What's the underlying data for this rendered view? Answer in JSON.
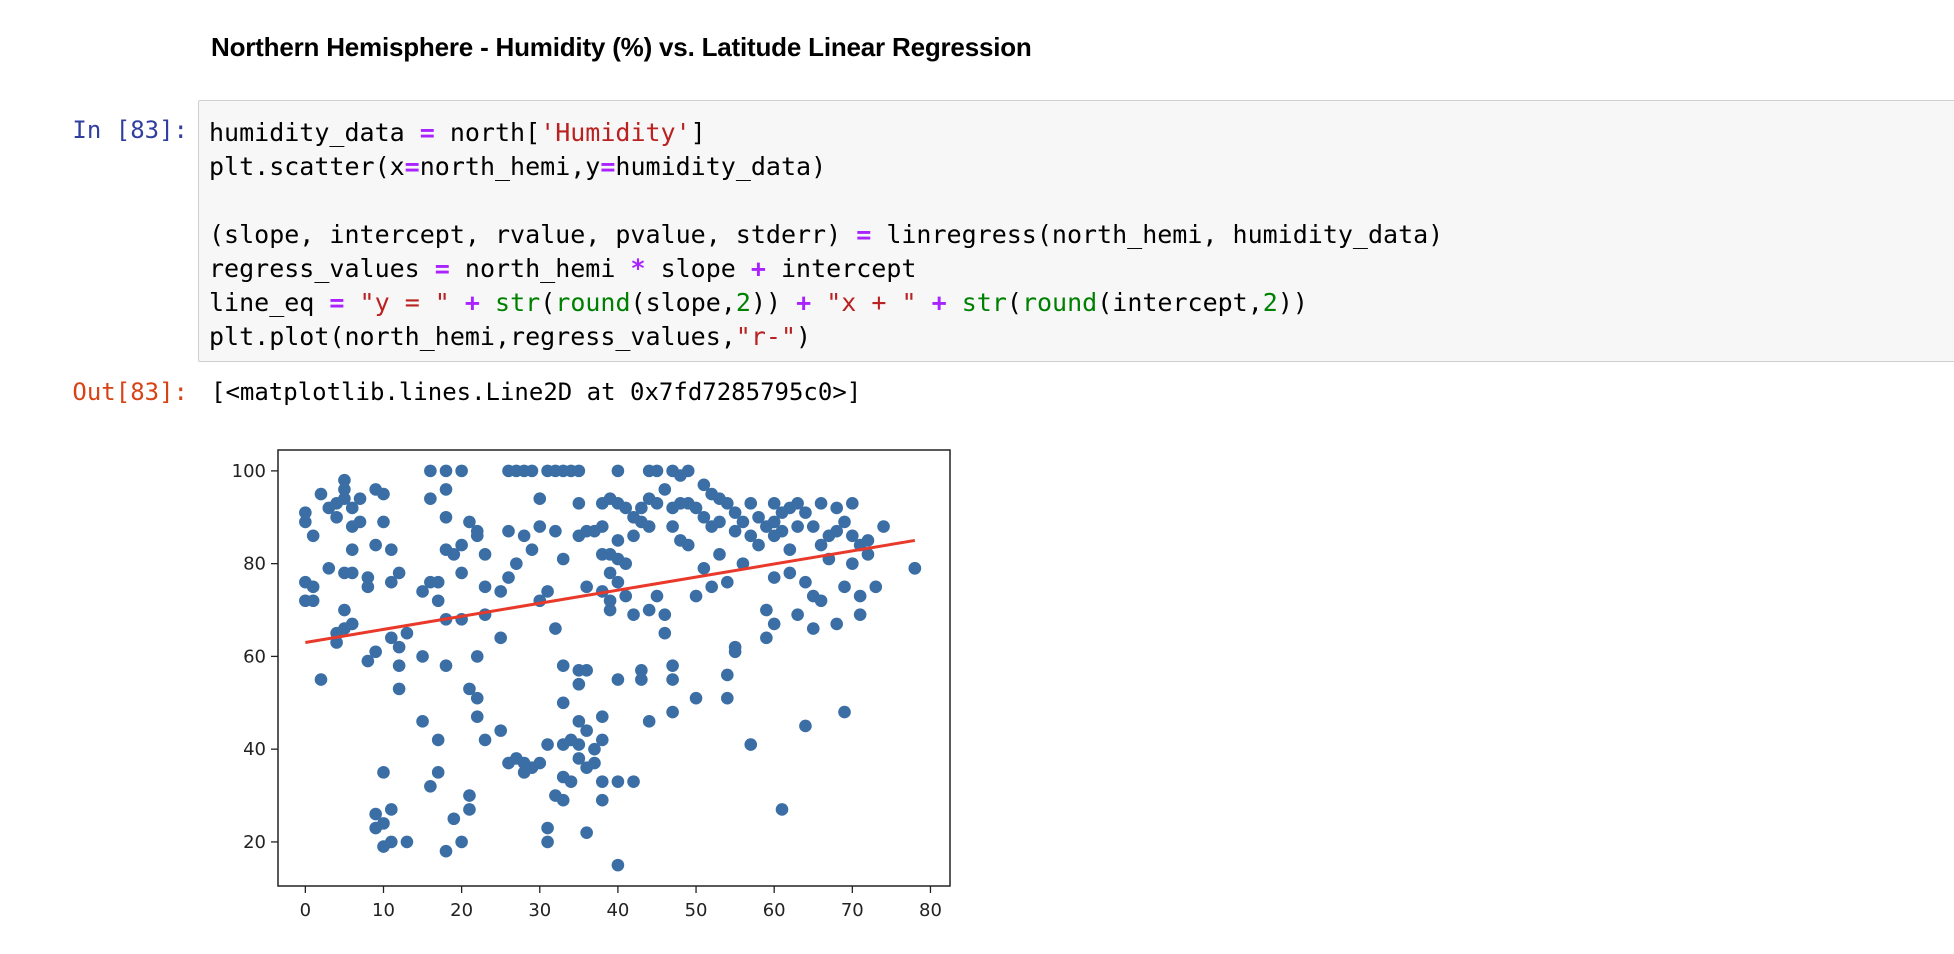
{
  "notebook": {
    "heading": "Northern Hemisphere - Humidity (%) vs. Latitude Linear Regression",
    "in_prompt": "In [83]:",
    "out_prompt": "Out[83]:",
    "output_text": "[<matplotlib.lines.Line2D at 0x7fd7285795c0>]",
    "code_lines": [
      "humidity_data = north['Humidity']",
      "plt.scatter(x=north_hemi,y=humidity_data)",
      "",
      "(slope, intercept, rvalue, pvalue, stderr) = linregress(north_hemi, humidity_data)",
      "regress_values = north_hemi * slope + intercept",
      "line_eq = \"y = \" + str(round(slope,2)) + \"x + \" + str(round(intercept,2))",
      "plt.plot(north_hemi,regress_values,\"r-\")"
    ]
  },
  "colors": {
    "points": "#3a6ea5",
    "line": "#e8392a"
  },
  "chart_data": {
    "type": "scatter",
    "title": "",
    "xlabel": "",
    "ylabel": "",
    "xlim": [
      -3.5,
      82.5
    ],
    "ylim": [
      10.5,
      104.5
    ],
    "xticks": [
      0,
      10,
      20,
      30,
      40,
      50,
      60,
      70,
      80
    ],
    "yticks": [
      20,
      40,
      60,
      80,
      100
    ],
    "grid": false,
    "regression_line": {
      "x": [
        0,
        78
      ],
      "y": [
        63,
        85
      ]
    },
    "points": [
      [
        0,
        91
      ],
      [
        0,
        89
      ],
      [
        0,
        76
      ],
      [
        0,
        72
      ],
      [
        1,
        75
      ],
      [
        1,
        72
      ],
      [
        1,
        86
      ],
      [
        2,
        95
      ],
      [
        2,
        55
      ],
      [
        3,
        79
      ],
      [
        3,
        92
      ],
      [
        4,
        93
      ],
      [
        4,
        90
      ],
      [
        4,
        65
      ],
      [
        4,
        63
      ],
      [
        5,
        94
      ],
      [
        5,
        98
      ],
      [
        5,
        96
      ],
      [
        5,
        78
      ],
      [
        5,
        70
      ],
      [
        5,
        66
      ],
      [
        6,
        92
      ],
      [
        6,
        88
      ],
      [
        6,
        83
      ],
      [
        6,
        78
      ],
      [
        6,
        67
      ],
      [
        7,
        94
      ],
      [
        7,
        89
      ],
      [
        8,
        77
      ],
      [
        8,
        75
      ],
      [
        8,
        59
      ],
      [
        9,
        96
      ],
      [
        9,
        84
      ],
      [
        9,
        26
      ],
      [
        9,
        23
      ],
      [
        9,
        61
      ],
      [
        10,
        95
      ],
      [
        10,
        89
      ],
      [
        10,
        35
      ],
      [
        10,
        24
      ],
      [
        10,
        19
      ],
      [
        11,
        83
      ],
      [
        11,
        76
      ],
      [
        11,
        64
      ],
      [
        11,
        27
      ],
      [
        11,
        20
      ],
      [
        12,
        78
      ],
      [
        12,
        62
      ],
      [
        12,
        58
      ],
      [
        12,
        53
      ],
      [
        13,
        65
      ],
      [
        13,
        20
      ],
      [
        15,
        74
      ],
      [
        15,
        60
      ],
      [
        15,
        46
      ],
      [
        16,
        100
      ],
      [
        16,
        94
      ],
      [
        16,
        76
      ],
      [
        16,
        32
      ],
      [
        17,
        76
      ],
      [
        17,
        72
      ],
      [
        17,
        42
      ],
      [
        17,
        35
      ],
      [
        18,
        100
      ],
      [
        18,
        96
      ],
      [
        18,
        90
      ],
      [
        18,
        83
      ],
      [
        18,
        68
      ],
      [
        18,
        58
      ],
      [
        18,
        18
      ],
      [
        19,
        82
      ],
      [
        19,
        25
      ],
      [
        20,
        100
      ],
      [
        20,
        84
      ],
      [
        20,
        78
      ],
      [
        20,
        68
      ],
      [
        20,
        20
      ],
      [
        21,
        89
      ],
      [
        21,
        53
      ],
      [
        21,
        30
      ],
      [
        21,
        27
      ],
      [
        22,
        87
      ],
      [
        22,
        86
      ],
      [
        22,
        60
      ],
      [
        22,
        51
      ],
      [
        22,
        47
      ],
      [
        23,
        82
      ],
      [
        23,
        75
      ],
      [
        23,
        69
      ],
      [
        23,
        42
      ],
      [
        25,
        74
      ],
      [
        25,
        64
      ],
      [
        25,
        44
      ],
      [
        26,
        100
      ],
      [
        26,
        87
      ],
      [
        26,
        77
      ],
      [
        26,
        37
      ],
      [
        27,
        100
      ],
      [
        27,
        80
      ],
      [
        27,
        38
      ],
      [
        28,
        100
      ],
      [
        28,
        86
      ],
      [
        28,
        37
      ],
      [
        28,
        35
      ],
      [
        29,
        100
      ],
      [
        29,
        83
      ],
      [
        29,
        36
      ],
      [
        30,
        94
      ],
      [
        30,
        88
      ],
      [
        30,
        72
      ],
      [
        30,
        37
      ],
      [
        31,
        100
      ],
      [
        31,
        74
      ],
      [
        31,
        41
      ],
      [
        31,
        23
      ],
      [
        31,
        20
      ],
      [
        32,
        100
      ],
      [
        32,
        87
      ],
      [
        32,
        66
      ],
      [
        32,
        30
      ],
      [
        33,
        100
      ],
      [
        33,
        81
      ],
      [
        33,
        58
      ],
      [
        33,
        50
      ],
      [
        33,
        41
      ],
      [
        33,
        34
      ],
      [
        33,
        29
      ],
      [
        34,
        100
      ],
      [
        34,
        42
      ],
      [
        34,
        33
      ],
      [
        35,
        100
      ],
      [
        35,
        93
      ],
      [
        35,
        86
      ],
      [
        35,
        57
      ],
      [
        35,
        54
      ],
      [
        35,
        46
      ],
      [
        35,
        41
      ],
      [
        35,
        38
      ],
      [
        36,
        87
      ],
      [
        36,
        75
      ],
      [
        36,
        57
      ],
      [
        36,
        44
      ],
      [
        36,
        36
      ],
      [
        36,
        22
      ],
      [
        37,
        87
      ],
      [
        37,
        40
      ],
      [
        37,
        37
      ],
      [
        38,
        93
      ],
      [
        38,
        88
      ],
      [
        38,
        82
      ],
      [
        38,
        74
      ],
      [
        38,
        47
      ],
      [
        38,
        42
      ],
      [
        38,
        33
      ],
      [
        38,
        29
      ],
      [
        39,
        94
      ],
      [
        39,
        82
      ],
      [
        39,
        78
      ],
      [
        39,
        72
      ],
      [
        39,
        70
      ],
      [
        40,
        100
      ],
      [
        40,
        93
      ],
      [
        40,
        85
      ],
      [
        40,
        81
      ],
      [
        40,
        76
      ],
      [
        40,
        55
      ],
      [
        40,
        33
      ],
      [
        40,
        15
      ],
      [
        41,
        92
      ],
      [
        41,
        80
      ],
      [
        41,
        73
      ],
      [
        42,
        90
      ],
      [
        42,
        86
      ],
      [
        42,
        69
      ],
      [
        42,
        33
      ],
      [
        43,
        92
      ],
      [
        43,
        89
      ],
      [
        43,
        57
      ],
      [
        43,
        55
      ],
      [
        44,
        100
      ],
      [
        44,
        94
      ],
      [
        44,
        88
      ],
      [
        44,
        70
      ],
      [
        44,
        46
      ],
      [
        45,
        100
      ],
      [
        45,
        93
      ],
      [
        45,
        73
      ],
      [
        46,
        96
      ],
      [
        46,
        65
      ],
      [
        46,
        69
      ],
      [
        47,
        100
      ],
      [
        47,
        92
      ],
      [
        47,
        88
      ],
      [
        47,
        58
      ],
      [
        47,
        55
      ],
      [
        47,
        48
      ],
      [
        48,
        99
      ],
      [
        48,
        93
      ],
      [
        48,
        85
      ],
      [
        49,
        100
      ],
      [
        49,
        93
      ],
      [
        49,
        84
      ],
      [
        50,
        92
      ],
      [
        50,
        73
      ],
      [
        50,
        51
      ],
      [
        51,
        97
      ],
      [
        51,
        90
      ],
      [
        51,
        79
      ],
      [
        52,
        95
      ],
      [
        52,
        88
      ],
      [
        52,
        75
      ],
      [
        53,
        94
      ],
      [
        53,
        89
      ],
      [
        53,
        82
      ],
      [
        54,
        93
      ],
      [
        54,
        76
      ],
      [
        54,
        56
      ],
      [
        54,
        51
      ],
      [
        55,
        91
      ],
      [
        55,
        87
      ],
      [
        55,
        62
      ],
      [
        55,
        61
      ],
      [
        56,
        89
      ],
      [
        56,
        80
      ],
      [
        57,
        93
      ],
      [
        57,
        86
      ],
      [
        57,
        41
      ],
      [
        58,
        90
      ],
      [
        58,
        84
      ],
      [
        59,
        88
      ],
      [
        59,
        70
      ],
      [
        59,
        64
      ],
      [
        60,
        93
      ],
      [
        60,
        89
      ],
      [
        60,
        86
      ],
      [
        60,
        77
      ],
      [
        60,
        67
      ],
      [
        61,
        91
      ],
      [
        61,
        87
      ],
      [
        61,
        27
      ],
      [
        62,
        92
      ],
      [
        62,
        83
      ],
      [
        62,
        78
      ],
      [
        63,
        93
      ],
      [
        63,
        88
      ],
      [
        63,
        69
      ],
      [
        64,
        91
      ],
      [
        64,
        76
      ],
      [
        64,
        45
      ],
      [
        65,
        88
      ],
      [
        65,
        73
      ],
      [
        65,
        66
      ],
      [
        66,
        93
      ],
      [
        66,
        84
      ],
      [
        66,
        72
      ],
      [
        67,
        86
      ],
      [
        67,
        81
      ],
      [
        68,
        92
      ],
      [
        68,
        87
      ],
      [
        68,
        67
      ],
      [
        69,
        89
      ],
      [
        69,
        75
      ],
      [
        69,
        48
      ],
      [
        70,
        93
      ],
      [
        70,
        86
      ],
      [
        70,
        80
      ],
      [
        71,
        84
      ],
      [
        71,
        73
      ],
      [
        71,
        69
      ],
      [
        72,
        85
      ],
      [
        72,
        82
      ],
      [
        73,
        75
      ],
      [
        74,
        88
      ],
      [
        78,
        79
      ],
      [
        78,
        79
      ]
    ]
  }
}
